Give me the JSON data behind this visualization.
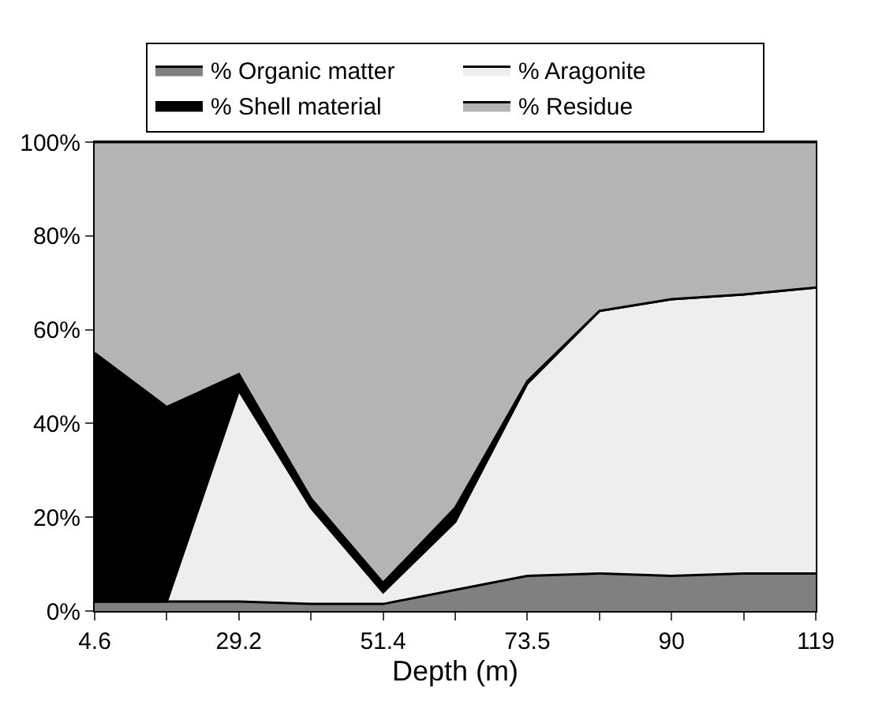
{
  "chart_data": {
    "type": "area",
    "stacked": true,
    "xlabel": "Depth (m)",
    "categories": [
      "4.6",
      null,
      "29.2",
      null,
      "51.4",
      null,
      "73.5",
      null,
      "90",
      null,
      "119"
    ],
    "series": [
      {
        "name": "% Organic matter",
        "color": "#808080",
        "values": [
          2,
          2,
          2,
          1.5,
          1.5,
          4.5,
          7.5,
          8,
          7.5,
          8,
          8
        ]
      },
      {
        "name": "% Aragonite",
        "color": "#eeeeee",
        "values": [
          0,
          0,
          45,
          20.5,
          2.5,
          14.5,
          41,
          56,
          59,
          59.5,
          61
        ]
      },
      {
        "name": "% Shell material",
        "color": "#000000",
        "values": [
          53,
          41.5,
          3.5,
          2,
          2,
          3,
          0.5,
          0,
          0,
          0,
          0
        ]
      },
      {
        "name": "% Residue",
        "color": "#b4b4b4",
        "values": [
          45,
          56.5,
          49.5,
          76,
          94,
          78,
          51,
          36,
          33.5,
          32.5,
          31
        ]
      }
    ],
    "ylim": [
      0,
      100
    ],
    "yticks": [
      {
        "value": 0,
        "label": "0%"
      },
      {
        "value": 20,
        "label": "20%"
      },
      {
        "value": 40,
        "label": "40%"
      },
      {
        "value": 60,
        "label": "60%"
      },
      {
        "value": 80,
        "label": "80%"
      },
      {
        "value": 100,
        "label": "100%"
      }
    ],
    "legend": "top"
  }
}
